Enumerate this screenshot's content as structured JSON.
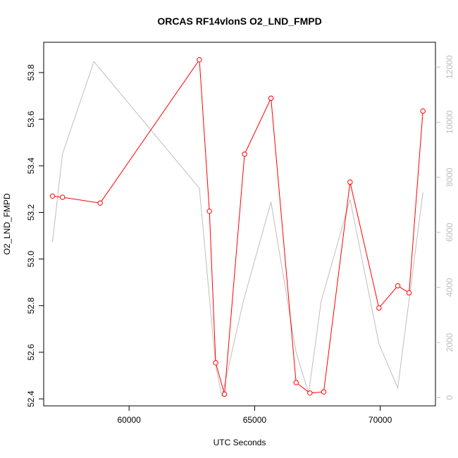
{
  "chart_data": {
    "type": "line",
    "title": "ORCAS RF14vlonS O2_LND_FMPD",
    "xlabel": "UTC Seconds",
    "ylabel": "O2_LND_FMPD",
    "xlim": [
      56600,
      72200
    ],
    "ylim": [
      52.37,
      53.93
    ],
    "y2lim": [
      -300,
      12900
    ],
    "xticks": [
      60000,
      65000,
      70000
    ],
    "yticks": [
      52.4,
      52.6,
      52.8,
      53.0,
      53.2,
      53.4,
      53.6,
      53.8
    ],
    "y2ticks": [
      0,
      2000,
      4000,
      6000,
      8000,
      10000,
      12000
    ],
    "grid": false,
    "series": [
      {
        "axis": "left",
        "color": "#ff0000",
        "markers": "open-circle",
        "x": [
          56950,
          57350,
          58850,
          62800,
          63200,
          63450,
          63800,
          64600,
          65650,
          66650,
          67200,
          67750,
          68800,
          69950,
          70700,
          71150,
          71700
        ],
        "y": [
          53.27,
          53.265,
          53.24,
          53.855,
          53.205,
          52.555,
          52.42,
          53.45,
          53.69,
          52.47,
          52.425,
          52.43,
          53.33,
          52.79,
          52.885,
          52.855,
          53.635
        ]
      },
      {
        "axis": "right",
        "color": "#bebebe",
        "markers": "none",
        "x": [
          56950,
          57350,
          58600,
          62800,
          63450,
          63700,
          64550,
          65650,
          66650,
          67150,
          67650,
          68800,
          69950,
          70700,
          71700
        ],
        "y": [
          5650,
          8850,
          12200,
          7600,
          1150,
          50,
          3500,
          7100,
          1650,
          150,
          3500,
          7200,
          1950,
          350,
          7450
        ]
      }
    ]
  }
}
